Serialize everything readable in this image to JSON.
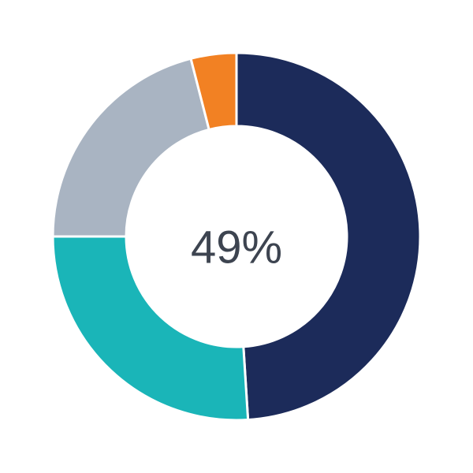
{
  "chart_data": {
    "type": "pie",
    "variant": "donut",
    "center_label": "49%",
    "slices": [
      {
        "value": 49,
        "color": "#1c2b5a"
      },
      {
        "value": 26,
        "color": "#1ab5b8"
      },
      {
        "value": 21,
        "color": "#a9b4c2"
      },
      {
        "value": 4,
        "color": "#f28123"
      }
    ],
    "start": "top",
    "direction": "clockwise"
  }
}
